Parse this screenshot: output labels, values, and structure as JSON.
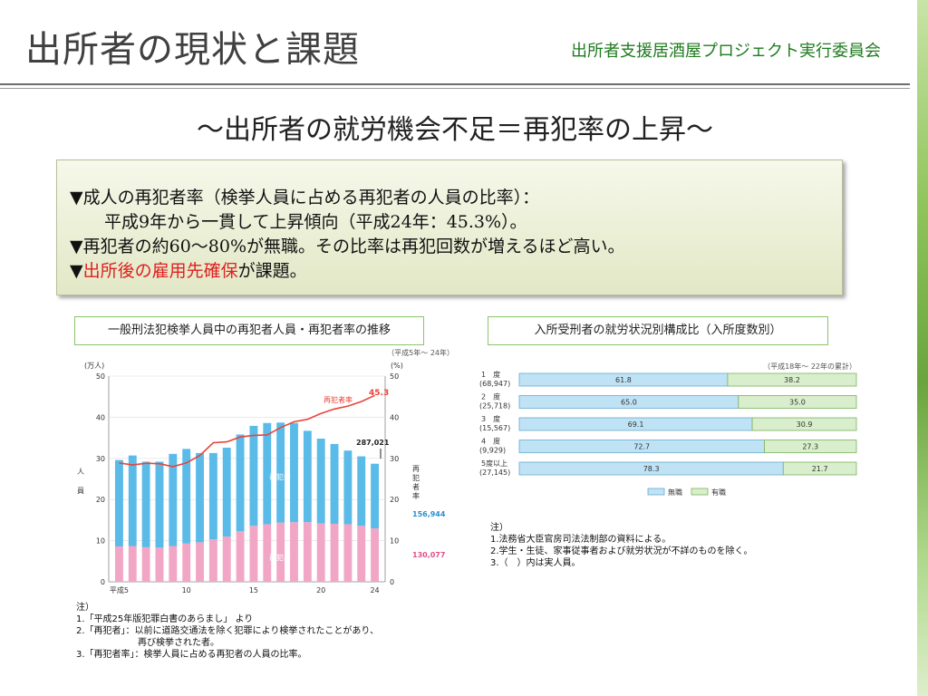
{
  "header": {
    "title": "出所者の現状と課題",
    "organization": "出所者支援居酒屋プロジェクト実行委員会"
  },
  "subtitle": "～出所者の就労機会不足＝再犯率の上昇～",
  "summary": {
    "line1": "▼成人の再犯者率（検挙人員に占める再犯者の人員の比率）：",
    "line2": "平成9年から一貫して上昇傾向（平成24年：45.3%）。",
    "line3": "▼再犯者の約60～80%が無職。その比率は再犯回数が増えるほど高い。",
    "line4_prefix": "▼",
    "line4_highlight": "出所後の雇用先確保",
    "line4_suffix": "が課題。"
  },
  "colors": {
    "accent_green": "#1e7a1e",
    "highlight_red": "#e02020",
    "bar_blue": "#5bbbe8",
    "bar_pink": "#f2a6c6",
    "line_red": "#e8443a"
  },
  "left_chart": {
    "heading": "一般刑法犯検挙人員中の再犯者人員・再犯者率の推移",
    "period_note": "（平成5年～ 24年）",
    "left_unit": "(万人)",
    "right_unit": "(%)",
    "y_label_1": "人",
    "y_label_2": "員",
    "right_axis_label": "再犯者率",
    "x_prefix": "平成",
    "series_label_rate": "再犯者率",
    "series_label_first": "初犯者",
    "series_label_repeat": "再犯者",
    "callout_total": "287,021",
    "callout_first": "156,944",
    "callout_repeat": "130,077",
    "callout_rate": "45.3",
    "notes": {
      "head": "注）",
      "n1": "1.「平成25年版犯罪白書のあらまし」 より",
      "n2": "2.「再犯者」：以前に道路交通法を除く犯罪により検挙されたことがあり、",
      "n2b": "再び検挙された者。",
      "n3": "3.「再犯者率」：検挙人員に占める再犯者の人員の比率。"
    }
  },
  "right_chart": {
    "heading": "入所受刑者の就労状況別構成比（入所度数別）",
    "period_note": "（平成18年～ 22年の累計）",
    "legend_unemployed": "無職",
    "legend_employed": "有職",
    "notes": {
      "head": "注）",
      "n1": "1.法務省大臣官房司法法制部の資料による。",
      "n2": "2.学生・生徒、家事従事者および就労状況が不詳のものを除く。",
      "n3": "3.（　）内は実人員。"
    }
  },
  "chart_data": [
    {
      "type": "bar",
      "title": "一般刑法犯検挙人員中の再犯者人員・再犯者率の推移",
      "x": [
        5,
        6,
        7,
        8,
        9,
        10,
        11,
        12,
        13,
        14,
        15,
        16,
        17,
        18,
        19,
        20,
        21,
        22,
        23,
        24
      ],
      "x_tick_labels": [
        "平成5",
        "10",
        "15",
        "20",
        "24"
      ],
      "ylabel_left": "人員 (万人)",
      "ylabel_right": "再犯者率 (%)",
      "ylim": [
        0,
        50
      ],
      "y_ticks": [
        0,
        10,
        20,
        30,
        40,
        50
      ],
      "series": [
        {
          "name": "再犯者",
          "values": [
            8.6,
            8.7,
            8.4,
            8.3,
            8.7,
            9.3,
            9.6,
            10.3,
            11.0,
            12.3,
            13.6,
            14.0,
            14.4,
            14.5,
            14.5,
            14.2,
            14.1,
            14.0,
            13.6,
            13.0
          ]
        },
        {
          "name": "初犯者",
          "values": [
            21.0,
            22.0,
            20.8,
            20.9,
            22.4,
            23.0,
            21.7,
            21.0,
            21.6,
            23.5,
            24.3,
            24.6,
            24.3,
            24.1,
            22.2,
            20.6,
            19.4,
            17.9,
            16.9,
            15.7
          ]
        },
        {
          "name": "再犯者率",
          "values": [
            28.9,
            28.4,
            28.8,
            28.7,
            28.0,
            28.9,
            30.7,
            33.8,
            34.0,
            35.2,
            35.6,
            35.7,
            37.5,
            38.9,
            39.5,
            40.9,
            42.0,
            42.7,
            43.8,
            45.3
          ]
        }
      ],
      "annotations": [
        "287,021",
        "156,944",
        "130,077",
        "45.3"
      ]
    },
    {
      "type": "bar",
      "stacked": true,
      "orientation": "horizontal",
      "title": "入所受刑者の就労状況別構成比（入所度数別）",
      "categories": [
        "1　度",
        "2　度",
        "3　度",
        "4　度",
        "5度以上"
      ],
      "category_counts": [
        "(68,947)",
        "(25,718)",
        "(15,567)",
        "(9,929)",
        "(27,145)"
      ],
      "xlim": [
        0,
        100
      ],
      "series": [
        {
          "name": "無職",
          "values": [
            61.8,
            65.0,
            69.1,
            72.7,
            78.3
          ]
        },
        {
          "name": "有職",
          "values": [
            38.2,
            35.0,
            30.9,
            27.3,
            21.7
          ]
        }
      ]
    }
  ]
}
